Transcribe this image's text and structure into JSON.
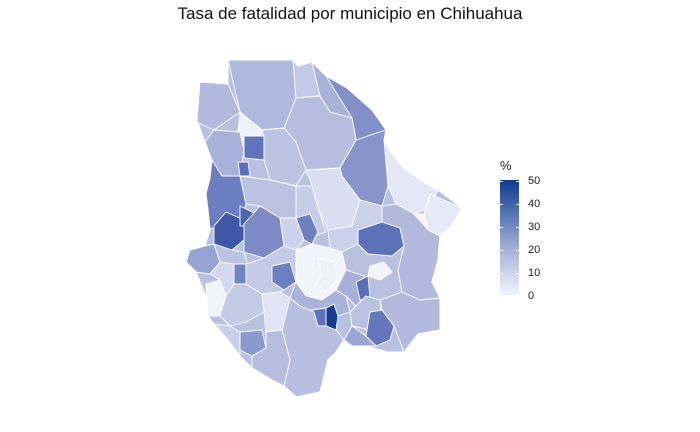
{
  "title": "Tasa de fatalidad por municipio en Chihuahua",
  "legend": {
    "title": "%",
    "ticks": [
      "50",
      "40",
      "30",
      "20",
      "10",
      "0"
    ],
    "low_color": "#f2f4fc",
    "mid_color": "#a5b0d8",
    "high_color": "#0d3b8c"
  },
  "map": {
    "region": "Chihuahua",
    "unit": "municipio",
    "border_color": "#ffffff"
  }
}
